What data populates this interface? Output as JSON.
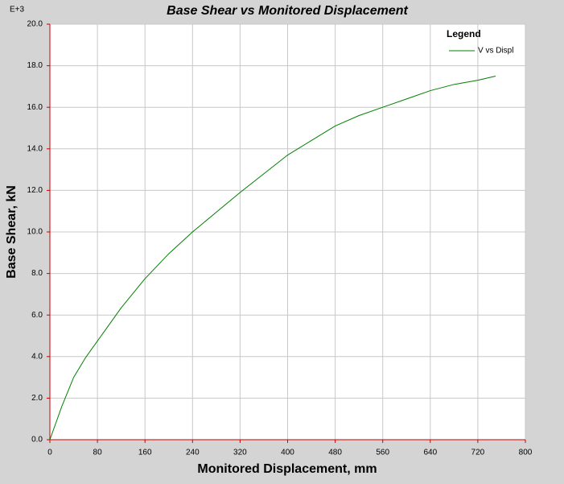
{
  "chart_data": {
    "type": "line",
    "title": "Base Shear vs Monitored Displacement",
    "multiplier": "E+3",
    "x_label": "Monitored Displacement, mm",
    "y_label": "Base Shear, kN",
    "x": [
      0,
      10,
      20,
      40,
      60,
      80,
      120,
      160,
      200,
      240,
      280,
      320,
      360,
      400,
      440,
      480,
      520,
      560,
      600,
      640,
      680,
      720,
      750
    ],
    "series": [
      {
        "name": "V vs Displ",
        "color": "#008000",
        "values": [
          0,
          0.8,
          1.6,
          3.0,
          3.95,
          4.75,
          6.35,
          7.75,
          8.95,
          10.0,
          10.95,
          11.9,
          12.8,
          13.7,
          14.4,
          15.1,
          15.6,
          16.0,
          16.4,
          16.8,
          17.1,
          17.3,
          17.5
        ]
      }
    ],
    "xlim": [
      0,
      800
    ],
    "xticks": [
      0,
      80,
      160,
      240,
      320,
      400,
      480,
      560,
      640,
      720,
      800
    ],
    "ylim": [
      0,
      20
    ],
    "yticks": [
      {
        "value": 0,
        "label": "0.0"
      },
      {
        "value": 2,
        "label": "2.0"
      },
      {
        "value": 4,
        "label": "4.0"
      },
      {
        "value": 6,
        "label": "6.0"
      },
      {
        "value": 8,
        "label": "8.0"
      },
      {
        "value": 10,
        "label": "10.0"
      },
      {
        "value": 12,
        "label": "12.0"
      },
      {
        "value": 14,
        "label": "14.0"
      },
      {
        "value": 16,
        "label": "16.0"
      },
      {
        "value": 18,
        "label": "18.0"
      },
      {
        "value": 20,
        "label": "20.0"
      }
    ],
    "grid": true,
    "legend_title": "Legend",
    "legend_position": "top-right"
  }
}
